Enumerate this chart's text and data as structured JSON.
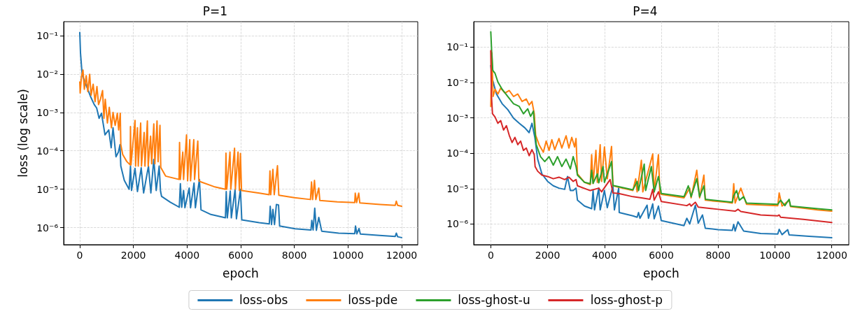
{
  "chart_data": [
    {
      "type": "line",
      "title": "P=1",
      "xlabel": "epoch",
      "ylabel": "loss (log scale)",
      "legend": "bottom",
      "log": "y",
      "grid": true,
      "line_style": "solid",
      "marker": "none",
      "xlim": [
        -600,
        12600
      ],
      "xticks": [
        0,
        2000,
        4000,
        6000,
        8000,
        10000,
        12000
      ],
      "ylim": [
        3.6e-07,
        0.23
      ],
      "yticks": [
        {
          "value": 1e-06,
          "label": "10⁻⁶"
        },
        {
          "value": 1e-05,
          "label": "10⁻⁵"
        },
        {
          "value": 0.0001,
          "label": "10⁻⁴"
        },
        {
          "value": 0.001,
          "label": "10⁻³"
        },
        {
          "value": 0.01,
          "label": "10⁻²"
        },
        {
          "value": 0.1,
          "label": "10⁻¹"
        }
      ],
      "series": [
        {
          "name": "loss-obs",
          "color": "#1f77b4",
          "x": [
            0,
            27,
            90,
            225,
            400,
            540,
            630,
            720,
            810,
            940,
            1080,
            1170,
            1240,
            1350,
            1440,
            1500,
            1530,
            1660,
            1840,
            1890,
            1930,
            2060,
            2150,
            2290,
            2380,
            2560,
            2650,
            2760,
            2850,
            2960,
            3010,
            3050,
            3370,
            3710,
            3750,
            3800,
            3870,
            3920,
            4080,
            4130,
            4260,
            4310,
            4460,
            4520,
            4890,
            5430,
            5460,
            5500,
            5610,
            5650,
            5790,
            5840,
            5990,
            6040,
            6690,
            7065,
            7100,
            7150,
            7200,
            7260,
            7330,
            7410,
            7450,
            8030,
            8620,
            8650,
            8700,
            8760,
            8820,
            8910,
            9020,
            9650,
            10250,
            10280,
            10330,
            10410,
            10460,
            11180,
            11760,
            11800,
            11850,
            12000
          ],
          "values": [
            0.12,
            0.035,
            0.0095,
            0.0054,
            0.0026,
            0.0016,
            0.0013,
            0.0007,
            0.00095,
            0.00026,
            0.00035,
            0.00012,
            0.0004,
            7e-05,
            9.3e-05,
            0.000145,
            4e-05,
            1.7e-05,
            1e-05,
            4e-05,
            9.3e-06,
            3.5e-05,
            8.7e-06,
            3.6e-05,
            8e-06,
            4e-05,
            8e-06,
            6e-05,
            9.3e-06,
            4e-05,
            9e-06,
            6.5e-06,
            4.6e-06,
            3.4e-06,
            1.4e-05,
            3.4e-06,
            9.3e-06,
            3.3e-06,
            1.07e-05,
            3.3e-06,
            1.45e-05,
            3.3e-06,
            1.8e-05,
            2.9e-06,
            2.2e-06,
            1.8e-06,
            8.7e-06,
            1.8e-06,
            9e-06,
            1.8e-06,
            1e-05,
            1.7e-06,
            1e-05,
            1.6e-06,
            1.35e-06,
            1.25e-06,
            3.6e-06,
            1.2e-06,
            3e-06,
            1.2e-06,
            4e-06,
            3.9e-06,
            1.1e-06,
            9.3e-07,
            8.7e-07,
            1.55e-06,
            8.7e-07,
            3.2e-06,
            8.5e-07,
            1.85e-06,
            8.1e-07,
            7.2e-07,
            7e-07,
            1.1e-06,
            6.9e-07,
            9.5e-07,
            6.8e-07,
            6.3e-07,
            5.9e-07,
            7.2e-07,
            5.8e-07,
            5.5e-07
          ]
        },
        {
          "name": "loss-pde",
          "color": "#ff7f0e",
          "x": [
            0,
            15,
            60,
            120,
            170,
            240,
            300,
            370,
            420,
            500,
            570,
            640,
            700,
            770,
            850,
            900,
            950,
            1030,
            1100,
            1180,
            1240,
            1320,
            1400,
            1450,
            1510,
            1530,
            1600,
            1750,
            1880,
            1890,
            1910,
            2060,
            2080,
            2150,
            2180,
            2270,
            2300,
            2400,
            2430,
            2520,
            2550,
            2640,
            2680,
            2760,
            2800,
            2880,
            2920,
            2990,
            3020,
            3200,
            3700,
            3720,
            3750,
            3840,
            3870,
            3980,
            4020,
            4100,
            4130,
            4250,
            4280,
            4400,
            4440,
            4520,
            5000,
            5430,
            5450,
            5480,
            5600,
            5630,
            5770,
            5800,
            5900,
            5950,
            5990,
            6030,
            6700,
            7060,
            7090,
            7120,
            7200,
            7250,
            7370,
            7420,
            8000,
            8600,
            8640,
            8680,
            8750,
            8800,
            8910,
            8950,
            9600,
            10250,
            10270,
            10320,
            10400,
            10440,
            11200,
            11760,
            11800,
            11850,
            12000
          ],
          "values": [
            0.0062,
            0.0032,
            0.0083,
            0.0126,
            0.004,
            0.009,
            0.0035,
            0.0098,
            0.0028,
            0.0054,
            0.0019,
            0.0047,
            0.0016,
            0.0022,
            0.0037,
            0.0007,
            0.0022,
            0.00053,
            0.00135,
            0.0004,
            0.001,
            0.00046,
            0.00095,
            0.00035,
            0.00095,
            0.000145,
            8e-05,
            5.3e-05,
            4.3e-05,
            0.00043,
            4.3e-05,
            0.00062,
            4e-05,
            0.0004,
            4e-05,
            0.00053,
            4e-05,
            0.0003,
            4e-05,
            0.0006,
            4e-05,
            0.00024,
            4.6e-05,
            0.0005,
            4.6e-05,
            0.0006,
            5.2e-05,
            0.00046,
            3.7e-05,
            2.2e-05,
            1.8e-05,
            0.000165,
            1.8e-05,
            9.3e-05,
            1.8e-05,
            0.00026,
            1.66e-05,
            0.000195,
            1.66e-05,
            0.000195,
            1.8e-05,
            0.00018,
            1.66e-05,
            1.55e-05,
            1.17e-05,
            1e-05,
            8.7e-05,
            1e-05,
            9.3e-05,
            1e-05,
            0.000117,
            1e-05,
            9.3e-05,
            9.3e-06,
            8.5e-05,
            9.3e-06,
            7.9e-06,
            7.2e-06,
            3e-05,
            7.2e-06,
            3.3e-05,
            7.2e-06,
            4.1e-05,
            7e-06,
            6e-06,
            5.4e-06,
            1.55e-05,
            5.4e-06,
            1.7e-05,
            5.4e-06,
            1.07e-05,
            5.1e-06,
            4.7e-06,
            4.5e-06,
            7.9e-06,
            4.5e-06,
            7.9e-06,
            4.4e-06,
            4e-06,
            3.8e-06,
            4.9e-06,
            3.8e-06,
            3.6e-06
          ]
        }
      ]
    },
    {
      "type": "line",
      "title": "P=4",
      "xlabel": "epoch",
      "log": "y",
      "grid": true,
      "line_style": "solid",
      "marker": "none",
      "legend": "bottom",
      "xlim": [
        -600,
        12600
      ],
      "xticks": [
        0,
        2000,
        4000,
        6000,
        8000,
        10000,
        12000
      ],
      "ylim": [
        2.6e-07,
        0.52
      ],
      "yticks": [
        {
          "value": 1e-06,
          "label": "10⁻⁶"
        },
        {
          "value": 1e-05,
          "label": "10⁻⁵"
        },
        {
          "value": 0.0001,
          "label": "10⁻⁴"
        },
        {
          "value": 0.001,
          "label": "10⁻³"
        },
        {
          "value": 0.01,
          "label": "10⁻²"
        },
        {
          "value": 0.1,
          "label": "10⁻¹"
        }
      ],
      "series": [
        {
          "name": "loss-obs",
          "color": "#1f77b4",
          "x": [
            0,
            60,
            200,
            400,
            600,
            800,
            1000,
            1200,
            1350,
            1450,
            1550,
            1650,
            1800,
            2000,
            2200,
            2400,
            2600,
            2700,
            2800,
            2900,
            3000,
            3050,
            3300,
            3550,
            3600,
            3650,
            3800,
            3850,
            4000,
            4100,
            4300,
            4350,
            4500,
            4520,
            5000,
            5150,
            5200,
            5250,
            5500,
            5550,
            5700,
            5750,
            5900,
            6000,
            6800,
            6900,
            7000,
            7200,
            7300,
            7450,
            7550,
            8000,
            8500,
            8550,
            8600,
            8700,
            8900,
            9500,
            10100,
            10150,
            10250,
            10450,
            10500,
            11200,
            12000
          ],
          "values": [
            0.03,
            0.012,
            0.0047,
            0.0025,
            0.0017,
            0.00098,
            0.0007,
            0.00052,
            0.00038,
            0.0007,
            0.00028,
            6.8e-05,
            2.6e-05,
            1.6e-05,
            1.2e-05,
            1.03e-05,
            9.5e-06,
            2.2e-05,
            8.8e-06,
            8.8e-06,
            1.03e-05,
            4.7e-06,
            3.2e-06,
            2.7e-06,
            8.8e-06,
            2.5e-06,
            1.03e-05,
            2.5e-06,
            8.8e-06,
            2.9e-06,
            1.2e-05,
            2.5e-06,
            1.03e-05,
            2.1e-06,
            1.7e-06,
            1.55e-06,
            2.1e-06,
            1.45e-06,
            3.4e-06,
            1.45e-06,
            3.7e-06,
            1.4e-06,
            3.2e-06,
            1.25e-06,
            9e-07,
            1.45e-06,
            1e-06,
            3.4e-06,
            1.05e-06,
            1.8e-06,
            7.6e-07,
            6.9e-07,
            6.6e-07,
            9.7e-07,
            6.3e-07,
            1.15e-06,
            6.3e-07,
            5.4e-07,
            5.2e-07,
            7.1e-07,
            5e-07,
            6.9e-07,
            4.9e-07,
            4.5e-07,
            4.1e-07
          ]
        },
        {
          "name": "loss-pde",
          "color": "#ff7f0e",
          "x": [
            0,
            40,
            80,
            150,
            250,
            350,
            500,
            650,
            800,
            950,
            1100,
            1250,
            1350,
            1450,
            1530,
            1580,
            1700,
            1850,
            1950,
            2050,
            2150,
            2250,
            2400,
            2500,
            2650,
            2750,
            2850,
            2950,
            3000,
            3050,
            3300,
            3500,
            3550,
            3600,
            3700,
            3750,
            3850,
            3900,
            4000,
            4100,
            4250,
            4300,
            4500,
            5000,
            5100,
            5150,
            5300,
            5350,
            5700,
            5750,
            5900,
            5950,
            6000,
            6800,
            7000,
            7050,
            7250,
            7350,
            7500,
            7550,
            8300,
            8500,
            8550,
            8600,
            8800,
            9000,
            10100,
            10150,
            10250,
            10500,
            10550,
            11500,
            12000
          ],
          "values": [
            0.0021,
            0.068,
            0.004,
            0.0064,
            0.0047,
            0.0069,
            0.005,
            0.0059,
            0.004,
            0.0047,
            0.0029,
            0.0034,
            0.0023,
            0.0029,
            0.0013,
            0.00032,
            0.000174,
            0.000107,
            0.00022,
            0.00012,
            0.00024,
            0.000126,
            0.00026,
            0.00014,
            0.00031,
            0.00014,
            0.00028,
            0.00015,
            0.00026,
            2.6e-05,
            1.5e-05,
            1.3e-05,
            9.1e-05,
            1.4e-05,
            0.00012,
            1.5e-05,
            0.000174,
            1.6e-05,
            0.00015,
            1.9e-05,
            0.000155,
            1.2e-05,
            1.1e-05,
            8.8e-06,
            1.9e-05,
            8.1e-06,
            6.3e-05,
            8.1e-06,
            9.5e-05,
            8.1e-06,
            9.1e-05,
            7.3e-06,
            6.9e-06,
            5.5e-06,
            1.03e-05,
            5.5e-06,
            3.3e-05,
            5.5e-06,
            2.4e-05,
            4.7e-06,
            4.1e-06,
            3.9e-06,
            1.37e-05,
            3.9e-06,
            1.03e-05,
            3.6e-06,
            3.3e-06,
            7.5e-06,
            3.2e-06,
            4.7e-06,
            3.1e-06,
            2.5e-06,
            2.3e-06
          ]
        },
        {
          "name": "loss-ghost-u",
          "color": "#2ca02c",
          "x": [
            0,
            30,
            70,
            150,
            250,
            400,
            600,
            800,
            1000,
            1150,
            1300,
            1400,
            1500,
            1550,
            1600,
            1750,
            1900,
            2050,
            2200,
            2350,
            2500,
            2650,
            2800,
            2900,
            3000,
            3050,
            3300,
            3500,
            3550,
            3600,
            3750,
            3800,
            3950,
            4000,
            4250,
            4300,
            4500,
            5000,
            5150,
            5200,
            5400,
            5450,
            5650,
            5750,
            5900,
            6000,
            6800,
            6950,
            7050,
            7250,
            7350,
            7500,
            7550,
            8500,
            8550,
            8650,
            8750,
            8900,
            9000,
            10100,
            10200,
            10350,
            10500,
            10550,
            11500,
            12000
          ],
          "values": [
            0.27,
            0.079,
            0.022,
            0.018,
            0.0103,
            0.0064,
            0.004,
            0.0025,
            0.0021,
            0.0013,
            0.0018,
            0.0011,
            0.00155,
            0.00045,
            0.000174,
            8e-05,
            5.8e-05,
            8e-05,
            4.6e-05,
            8e-05,
            4.2e-05,
            6.8e-05,
            3.6e-05,
            8e-05,
            4.2e-05,
            2.4e-05,
            1.5e-05,
            1.37e-05,
            3.3e-05,
            1.4e-05,
            2.6e-05,
            1.45e-05,
            4.2e-05,
            1.5e-05,
            5.8e-05,
            1.23e-05,
            1.13e-05,
            9.2e-06,
            1.6e-05,
            8.8e-06,
            4.9e-05,
            8.8e-06,
            4.2e-05,
            8.1e-06,
            2.2e-05,
            7.3e-06,
            5.9e-06,
            1.2e-05,
            5.9e-06,
            1.9e-05,
            5.9e-06,
            1.2e-05,
            5e-06,
            4.1e-06,
            6.3e-06,
            8.8e-06,
            4.7e-06,
            5.9e-06,
            3.9e-06,
            3.6e-06,
            4.7e-06,
            3.3e-06,
            5e-06,
            3.2e-06,
            2.7e-06,
            2.5e-06
          ]
        },
        {
          "name": "loss-ghost-p",
          "color": "#d62728",
          "x": [
            0,
            20,
            60,
            150,
            250,
            350,
            450,
            550,
            650,
            750,
            850,
            950,
            1050,
            1150,
            1250,
            1350,
            1450,
            1530,
            1560,
            1650,
            1800,
            2000,
            2200,
            2400,
            2600,
            2750,
            2900,
            3000,
            3050,
            3500,
            3800,
            3900,
            4200,
            4300,
            4500,
            5000,
            5300,
            5600,
            5700,
            5750,
            5900,
            6000,
            6900,
            7000,
            7050,
            7200,
            7300,
            8000,
            8600,
            8700,
            8800,
            9500,
            10100,
            10150,
            10200,
            11000,
            12000
          ],
          "values": [
            0.079,
            0.0047,
            0.0013,
            0.00105,
            0.0007,
            0.00083,
            0.00045,
            0.0006,
            0.00032,
            0.0002,
            0.00028,
            0.000174,
            0.00022,
            0.00012,
            0.00014,
            8.5e-05,
            0.000126,
            9.1e-05,
            4.2e-05,
            3.1e-05,
            2.4e-05,
            2.2e-05,
            1.9e-05,
            2.1e-05,
            1.8e-05,
            2.1e-05,
            1.6e-05,
            1.8e-05,
            1.2e-05,
            8.8e-06,
            1.03e-05,
            8.1e-06,
            1.8e-05,
            7.5e-06,
            7.3e-06,
            5.9e-06,
            5.5e-06,
            5e-06,
            9.5e-06,
            4.7e-06,
            8.1e-06,
            4.3e-06,
            3.3e-06,
            3.7e-06,
            3.2e-06,
            4.1e-06,
            3e-06,
            2.6e-06,
            2.3e-06,
            2.6e-06,
            2.25e-06,
            1.8e-06,
            1.7e-06,
            1.8e-06,
            1.55e-06,
            1.35e-06,
            1.1e-06
          ]
        }
      ]
    }
  ]
}
